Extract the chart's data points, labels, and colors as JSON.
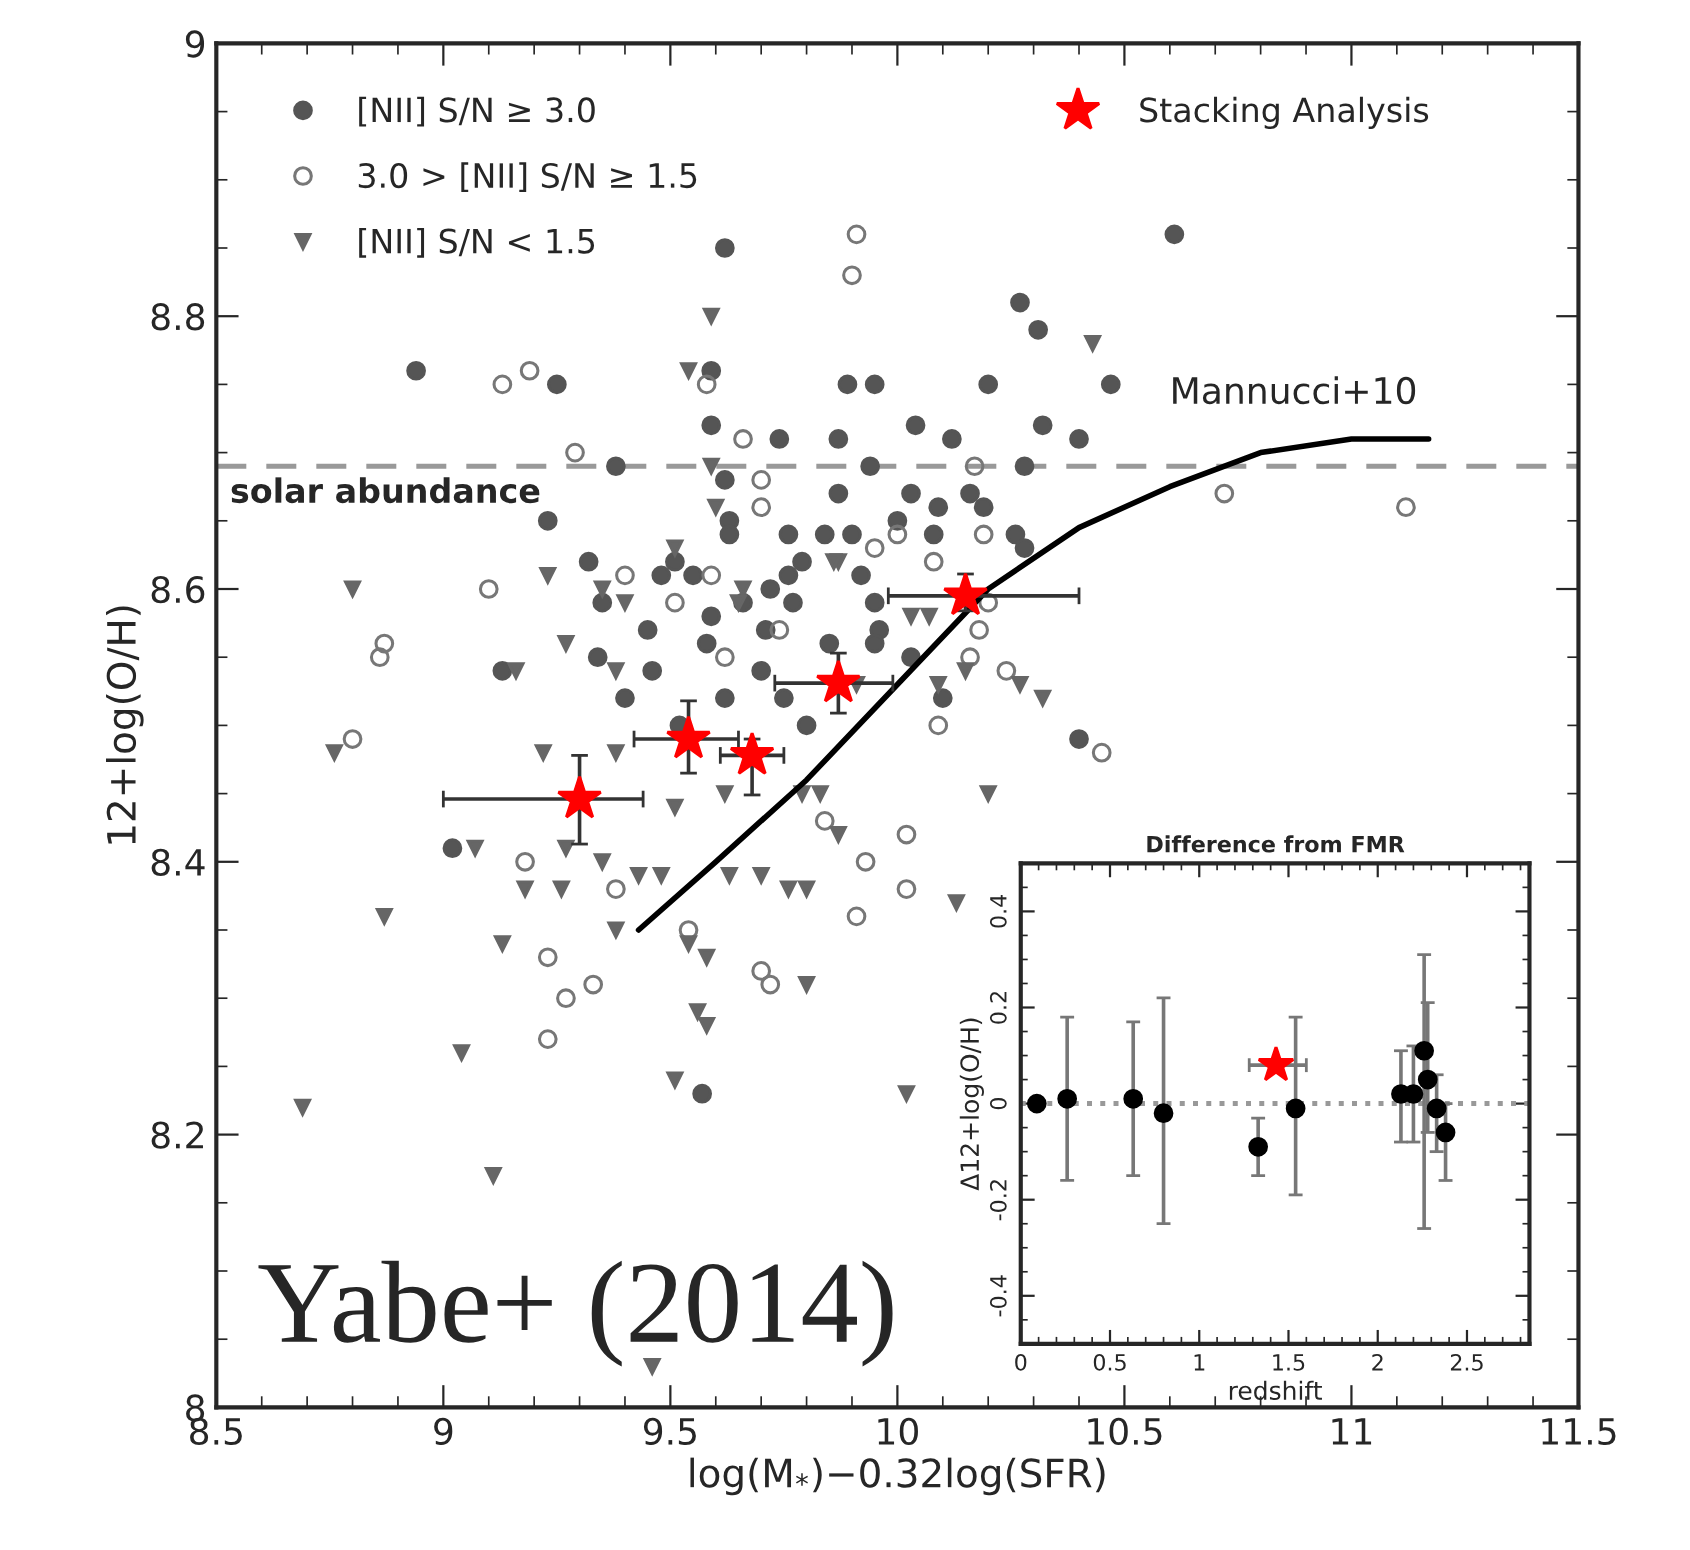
{
  "chart_data": [
    {
      "type": "scatter",
      "xlabel": "log(M$_{*}$)−0.32log(SFR)",
      "ylabel": "12+log(O/H)",
      "xlim": [
        8.5,
        11.5
      ],
      "xticks": [
        8.5,
        9,
        9.5,
        10,
        10.5,
        11,
        11.5
      ],
      "ylim": [
        8,
        9
      ],
      "yticks": [
        8,
        8.2,
        8.4,
        8.6,
        8.8,
        9
      ],
      "grid": false,
      "legend": "top left",
      "ref_lines": [
        {
          "axis": "y",
          "value": 8.69,
          "label": "solar abundance",
          "color": "#999999",
          "line_style": "dashed"
        }
      ],
      "annotations": [
        "Yabe+ (2014)"
      ],
      "series": [
        {
          "name": "[NII] S/N ≥ 3.0",
          "color": "#555555",
          "marker": "circle",
          "x": [
            9.62,
            8.94,
            9.25,
            9.59,
            9.89,
            9.95,
            9.59,
            9.74,
            9.87,
            9.38,
            9.94,
            9.62,
            9.87,
            9.23,
            9.63,
            9.76,
            9.84,
            9.9,
            9.32,
            9.63,
            9.48,
            9.51,
            9.76,
            9.35,
            9.59,
            9.13,
            9.46,
            9.34,
            9.71,
            9.95,
            10.61,
            10.27,
            10.31,
            10.47,
            10.2,
            10.04,
            10.32,
            10.4,
            10.12,
            10.28,
            10.16,
            10.03,
            10.09,
            10.19,
            10.26,
            10.28,
            10.0,
            10.08,
            9.79,
            9.92,
            9.77,
            9.96,
            9.95,
            9.57,
            9.02,
            9.52,
            9.62,
            9.7,
            9.8,
            9.85,
            9.58,
            9.4,
            9.45,
            9.75,
            10.03,
            10.1,
            10.4,
            9.66,
            9.55,
            9.72
          ],
          "values": [
            8.85,
            8.76,
            8.75,
            8.76,
            8.75,
            8.75,
            8.72,
            8.71,
            8.71,
            8.69,
            8.69,
            8.68,
            8.67,
            8.65,
            8.65,
            8.64,
            8.64,
            8.64,
            8.62,
            8.64,
            8.61,
            8.62,
            8.61,
            8.59,
            8.58,
            8.54,
            8.54,
            8.55,
            8.57,
            8.59,
            8.86,
            8.81,
            8.79,
            8.75,
            8.75,
            8.72,
            8.72,
            8.71,
            8.71,
            8.69,
            8.67,
            8.67,
            8.66,
            8.66,
            8.64,
            8.63,
            8.65,
            8.64,
            8.62,
            8.61,
            8.59,
            8.57,
            8.56,
            8.23,
            8.41,
            8.5,
            8.52,
            8.54,
            8.5,
            8.56,
            8.56,
            8.52,
            8.57,
            8.52,
            8.55,
            8.52,
            8.49,
            8.59,
            8.61,
            8.6
          ]
        },
        {
          "name": "3.0 > [NII] S/N ≥ 1.5",
          "color": "#777777",
          "marker": "circle",
          "x": [
            9.91,
            9.9,
            9.19,
            9.13,
            9.29,
            9.66,
            9.58,
            9.7,
            9.7,
            9.59,
            9.4,
            9.1,
            8.87,
            8.86,
            9.95,
            9.74,
            9.62,
            9.51,
            10.17,
            10.72,
            11.12,
            10.19,
            10.08,
            10.0,
            10.2,
            10.18,
            10.16,
            10.24,
            8.8,
            9.18,
            9.23,
            9.27,
            9.33,
            9.38,
            9.54,
            9.7,
            9.72,
            9.84,
            9.91,
            9.93,
            10.02,
            10.02,
            10.09,
            9.23,
            10.45
          ],
          "values": [
            8.86,
            8.83,
            8.76,
            8.75,
            8.7,
            8.71,
            8.75,
            8.68,
            8.66,
            8.61,
            8.61,
            8.6,
            8.56,
            8.55,
            8.63,
            8.57,
            8.55,
            8.59,
            8.69,
            8.67,
            8.66,
            8.64,
            8.62,
            8.64,
            8.59,
            8.57,
            8.55,
            8.54,
            8.49,
            8.4,
            8.33,
            8.3,
            8.31,
            8.38,
            8.35,
            8.32,
            8.31,
            8.43,
            8.36,
            8.4,
            8.42,
            8.38,
            8.5,
            8.27,
            8.48
          ]
        },
        {
          "name": "[NII] S/N < 1.5",
          "color": "#666666",
          "marker": "triangle",
          "x": [
            9.59,
            9.54,
            8.8,
            9.23,
            9.35,
            9.4,
            9.59,
            9.6,
            9.51,
            9.27,
            9.16,
            9.38,
            9.87,
            9.66,
            10.43,
            9.65,
            9.86,
            10.03,
            10.07,
            10.15,
            10.32,
            10.27,
            8.76,
            8.87,
            9.13,
            9.18,
            9.26,
            9.38,
            9.04,
            8.69,
            9.11,
            9.51,
            9.46,
            9.43,
            9.48,
            9.54,
            9.58,
            9.56,
            9.58,
            9.63,
            9.7,
            9.76,
            9.8,
            9.8,
            9.87,
            10.2,
            10.13,
            10.02,
            10.09,
            9.38,
            9.22,
            9.62,
            9.51,
            9.79,
            9.27,
            9.35,
            9.07,
            9.83,
            9.91
          ],
          "values": [
            8.8,
            8.76,
            8.6,
            8.61,
            8.6,
            8.59,
            8.69,
            8.66,
            8.63,
            8.56,
            8.54,
            8.54,
            8.62,
            8.6,
            8.78,
            8.59,
            8.62,
            8.58,
            8.58,
            8.54,
            8.52,
            8.53,
            8.48,
            8.36,
            8.34,
            8.38,
            8.38,
            8.35,
            8.26,
            8.22,
            8.17,
            8.24,
            8.03,
            8.39,
            8.39,
            8.34,
            8.33,
            8.29,
            8.28,
            8.39,
            8.39,
            8.38,
            8.38,
            8.31,
            8.42,
            8.45,
            8.37,
            8.23,
            8.53,
            8.48,
            8.48,
            8.45,
            8.44,
            8.45,
            8.41,
            8.4,
            8.41,
            8.45,
            8.53
          ]
        },
        {
          "name": "Mannucci+10",
          "type": "line",
          "color": "#000000",
          "line_style": "solid",
          "x": [
            9.43,
            9.6,
            9.8,
            10.0,
            10.2,
            10.4,
            10.6,
            10.8,
            11.0,
            11.17
          ],
          "values": [
            8.35,
            8.4,
            8.46,
            8.53,
            8.6,
            8.645,
            8.675,
            8.7,
            8.71,
            8.71
          ]
        },
        {
          "name": "Stacking Analysis",
          "color": "#ff0000",
          "marker": "star",
          "x": [
            9.3,
            9.54,
            9.68,
            9.87,
            10.15
          ],
          "values": [
            8.446,
            8.49,
            8.478,
            8.531,
            8.595
          ],
          "errors": [
            [
              8.413,
              8.478
            ],
            [
              8.465,
              8.518
            ],
            [
              8.449,
              8.49
            ],
            [
              8.509,
              8.553
            ],
            [
              8.584,
              8.611
            ]
          ],
          "xerrors": [
            [
              9.0,
              9.44
            ],
            [
              9.42,
              9.65
            ],
            [
              9.61,
              9.75
            ],
            [
              9.73,
              9.99
            ],
            [
              9.98,
              10.4
            ]
          ]
        }
      ]
    },
    {
      "type": "scatter",
      "title": "Difference from FMR",
      "xlabel": "redshift",
      "ylabel": "Δ12+log(O/H)",
      "xlim": [
        0,
        2.85
      ],
      "xticks": [
        0,
        0.5,
        1,
        1.5,
        2,
        2.5
      ],
      "ylim": [
        -0.5,
        0.5
      ],
      "yticks": [
        -0.4,
        -0.2,
        0,
        0.2,
        0.4
      ],
      "grid": false,
      "ref_lines": [
        {
          "axis": "y",
          "value": 0,
          "color": "#999999",
          "line_style": "dotted"
        }
      ],
      "series": [
        {
          "color": "#000000",
          "marker": "circle",
          "x": [
            0.09,
            0.26,
            0.63,
            0.8,
            1.33,
            1.54,
            2.13,
            2.2,
            2.26,
            2.28,
            2.33,
            2.38
          ],
          "values": [
            0.0,
            0.01,
            0.01,
            -0.02,
            -0.09,
            -0.01,
            0.02,
            0.02,
            0.11,
            0.05,
            -0.01,
            -0.06
          ],
          "errors": [
            null,
            [
              -0.16,
              0.18
            ],
            [
              -0.15,
              0.17
            ],
            [
              -0.25,
              0.22
            ],
            [
              -0.15,
              -0.03
            ],
            [
              -0.19,
              0.18
            ],
            [
              -0.08,
              0.11
            ],
            [
              -0.08,
              0.12
            ],
            [
              -0.26,
              0.31
            ],
            [
              -0.06,
              0.21
            ],
            [
              -0.1,
              0.06
            ],
            [
              -0.16,
              0.0
            ]
          ]
        },
        {
          "color": "#ff0000",
          "marker": "star",
          "x": [
            1.43
          ],
          "values": [
            0.08
          ],
          "xerrors": [
            [
              1.28,
              1.6
            ]
          ]
        }
      ]
    }
  ]
}
